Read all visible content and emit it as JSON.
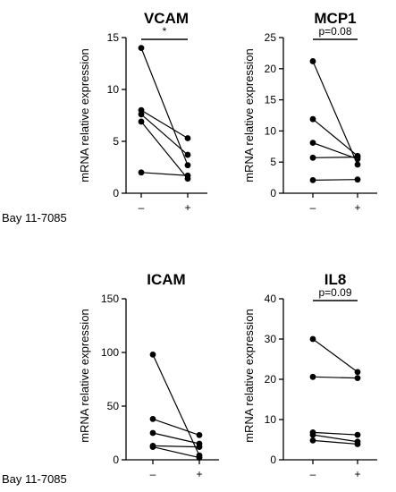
{
  "chart_data": [
    {
      "type": "scatter",
      "title": "VCAM",
      "ylabel": "mRNA relative expression",
      "ylim": [
        0,
        15
      ],
      "yticks": [
        "0",
        "5",
        "10",
        "15"
      ],
      "categories": [
        "–",
        "+"
      ],
      "significance": "*",
      "pairs": [
        [
          14.0,
          2.7
        ],
        [
          8.0,
          5.3
        ],
        [
          7.6,
          3.7
        ],
        [
          6.9,
          1.4
        ],
        [
          2.0,
          1.7
        ]
      ]
    },
    {
      "type": "scatter",
      "title": "MCP1",
      "ylabel": "mRNA relative expression",
      "ylim": [
        0,
        25
      ],
      "yticks": [
        "0",
        "5",
        "10",
        "15",
        "20",
        "25"
      ],
      "categories": [
        "–",
        "+"
      ],
      "significance": "p=0.08",
      "pairs": [
        [
          21.2,
          4.6
        ],
        [
          11.9,
          6.0
        ],
        [
          8.1,
          5.5
        ],
        [
          5.7,
          5.8
        ],
        [
          2.1,
          2.2
        ]
      ]
    },
    {
      "type": "scatter",
      "title": "ICAM",
      "ylabel": "mRNA relative expression",
      "ylim": [
        0,
        150
      ],
      "yticks": [
        "0",
        "50",
        "100",
        "150"
      ],
      "categories": [
        "–",
        "+"
      ],
      "significance": "",
      "pairs": [
        [
          98.0,
          4.0
        ],
        [
          38.0,
          23.0
        ],
        [
          25.0,
          15.0
        ],
        [
          13.0,
          12.0
        ],
        [
          12.0,
          2.0
        ]
      ]
    },
    {
      "type": "scatter",
      "title": "IL8",
      "ylabel": "mRNA relative expression",
      "ylim": [
        0,
        40
      ],
      "yticks": [
        "0",
        "10",
        "20",
        "30",
        "40"
      ],
      "categories": [
        "–",
        "+"
      ],
      "significance": "p=0.09",
      "pairs": [
        [
          30.0,
          21.8
        ],
        [
          20.6,
          20.3
        ],
        [
          6.8,
          6.2
        ],
        [
          6.2,
          4.5
        ],
        [
          4.8,
          3.9
        ]
      ]
    }
  ],
  "row_labels": [
    "Bay 11-7085",
    "Bay 11-7085"
  ]
}
